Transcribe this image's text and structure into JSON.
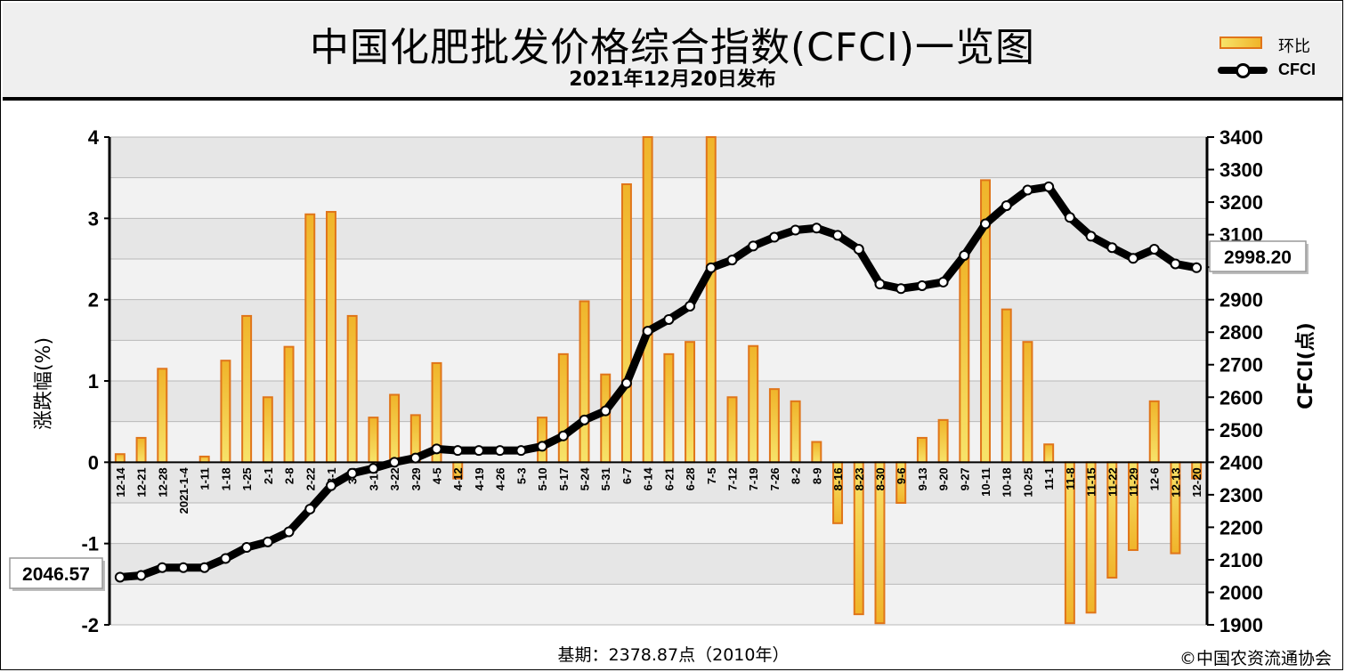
{
  "header": {
    "title": "中国化肥批发价格综合指数(CFCI)一览图",
    "subtitle": "2021年12月20日发布"
  },
  "legend": {
    "bar_label": "环比",
    "line_label": "CFCI"
  },
  "footer": {
    "base_period": "基期：2378.87点（2010年）",
    "copyright": "©中国农资流通协会"
  },
  "colors": {
    "bar_fill_top": "#f0b42a",
    "bar_fill_bottom": "#f7e36a",
    "bar_stroke": "#e0751a",
    "line": "#000000",
    "grid_band": "#e8e8e8"
  },
  "chart_data": {
    "type": "bar+line",
    "categories": [
      "12-14",
      "12-21",
      "12-28",
      "2021-1-4",
      "1-11",
      "1-18",
      "1-25",
      "2-1",
      "2-8",
      "2-22",
      "3-1",
      "3-8",
      "3-15",
      "3-22",
      "3-29",
      "4-5",
      "4-12",
      "4-19",
      "4-26",
      "5-3",
      "5-10",
      "5-17",
      "5-24",
      "5-31",
      "6-7",
      "6-14",
      "6-21",
      "6-28",
      "7-5",
      "7-12",
      "7-19",
      "7-26",
      "8-2",
      "8-9",
      "8-16",
      "8-23",
      "8-30",
      "9-6",
      "9-13",
      "9-20",
      "9-27",
      "10-11",
      "10-18",
      "10-25",
      "11-1",
      "11-8",
      "11-15",
      "11-22",
      "11-29",
      "12-6",
      "12-13",
      "12-20"
    ],
    "series": [
      {
        "name": "环比",
        "axis": "left",
        "values": [
          0.1,
          0.3,
          1.15,
          0,
          0.07,
          1.25,
          1.8,
          0.8,
          1.42,
          3.05,
          3.08,
          1.8,
          0.55,
          0.83,
          0.58,
          1.22,
          -0.2,
          0,
          0,
          0,
          0.55,
          1.33,
          1.98,
          1.08,
          3.42,
          4.0,
          1.33,
          1.48,
          4.0,
          0.8,
          1.43,
          0.9,
          0.75,
          0.25,
          -0.75,
          -1.87,
          -1.98,
          -0.5,
          0.3,
          0.52,
          2.55,
          3.47,
          1.88,
          1.48,
          0.22,
          -1.98,
          -1.85,
          -1.42,
          -1.08,
          0.75,
          -1.12,
          -0.2
        ]
      },
      {
        "name": "CFCI",
        "axis": "right",
        "values": [
          2046.57,
          2052,
          2076,
          2076,
          2076,
          2104,
          2138,
          2155,
          2186,
          2256,
          2328,
          2366,
          2381,
          2400,
          2413,
          2441,
          2436,
          2436,
          2436,
          2436,
          2449,
          2481,
          2530,
          2558,
          2643,
          2803,
          2839,
          2880,
          2998,
          3022,
          3065,
          3092,
          3114,
          3120,
          3098,
          3055,
          2948,
          2934,
          2943,
          2954,
          3036,
          3133,
          3189,
          3237,
          3247,
          3153,
          3095,
          3060,
          3027,
          3055,
          3010,
          2998.2
        ]
      }
    ],
    "y_left": {
      "label": "涨跌幅(%)",
      "range": [
        -2,
        4
      ],
      "ticks": [
        "-2",
        "-1",
        "0",
        "1",
        "2",
        "3",
        "4"
      ]
    },
    "y_right": {
      "label": "CFCI(点)",
      "range": [
        1900,
        3400
      ],
      "ticks": [
        "1900",
        "2000",
        "2100",
        "2200",
        "2300",
        "2400",
        "2500",
        "2600",
        "2700",
        "2800",
        "2900",
        "3000",
        "3100",
        "3200",
        "3300",
        "3400"
      ]
    },
    "callouts": {
      "first": "2046.57",
      "last": "2998.20"
    },
    "grid": true,
    "legend_position": "top-right"
  }
}
